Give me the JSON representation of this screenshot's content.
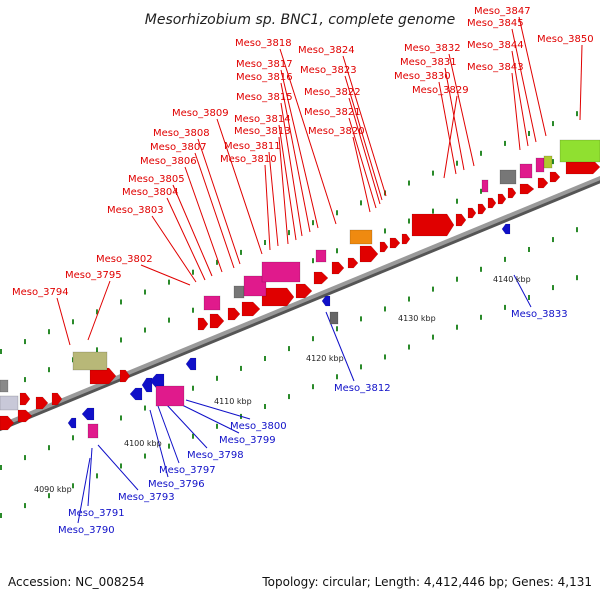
{
  "title": "Mesorhizobium sp. BNC1, complete genome",
  "accession": "Accession: NC_008254",
  "summary": "Topology: circular; Length: 4,412,446 bp; Genes: 4,131",
  "colors": {
    "forward": "#e00000",
    "reverse": "#1010c8",
    "backbone": "#888888"
  },
  "scale_labels": [
    "4090 kbp",
    "4100 kbp",
    "4110 kbp",
    "4120 kbp",
    "4130 kbp",
    "4140 kbp"
  ],
  "forward_genes": [
    "Meso_3794",
    "Meso_3795",
    "Meso_3802",
    "Meso_3803",
    "Meso_3804",
    "Meso_3805",
    "Meso_3806",
    "Meso_3807",
    "Meso_3808",
    "Meso_3809",
    "Meso_3810",
    "Meso_3811",
    "Meso_3813",
    "Meso_3814",
    "Meso_3815",
    "Meso_3816",
    "Meso_3817",
    "Meso_3818",
    "Meso_3820",
    "Meso_3821",
    "Meso_3822",
    "Meso_3823",
    "Meso_3824",
    "Meso_3829",
    "Meso_3830",
    "Meso_3831",
    "Meso_3832",
    "Meso_3843",
    "Meso_3844",
    "Meso_3845",
    "Meso_3847",
    "Meso_3850"
  ],
  "reverse_genes": [
    "Meso_3790",
    "Meso_3791",
    "Meso_3793",
    "Meso_3796",
    "Meso_3797",
    "Meso_3798",
    "Meso_3799",
    "Meso_3800",
    "Meso_3812",
    "Meso_3833"
  ]
}
